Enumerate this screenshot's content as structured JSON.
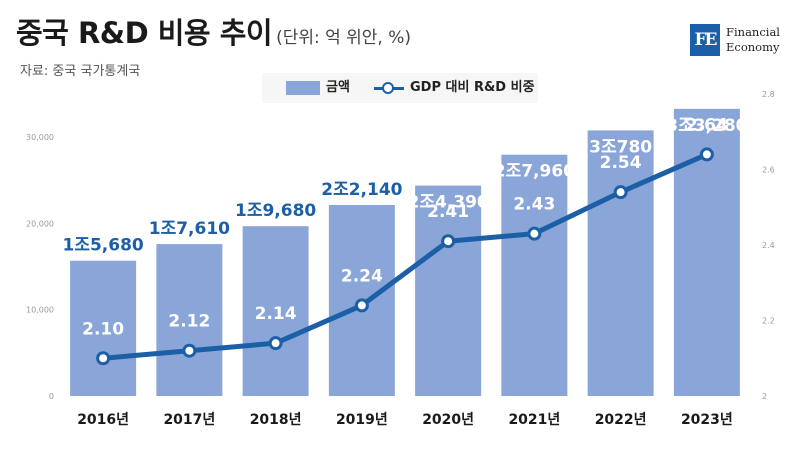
{
  "header": {
    "title": "중국 R&D 비용 추이",
    "unit": "(단위: 억 위안, %)",
    "source": "자료: 중국 국가통계국"
  },
  "logo": {
    "mark": "FE",
    "line1": "Financial",
    "line2": "Economy"
  },
  "legend": {
    "bars": "금액",
    "line": "GDP 대비 R&D 비중"
  },
  "colors": {
    "bar": "#8aa6d8",
    "line": "#1d5fa6",
    "bar_label_light": "#ffffff",
    "bar_label_dark": "#1d5fa6"
  },
  "chart_data": {
    "type": "bar",
    "categories": [
      "2016년",
      "2017년",
      "2018년",
      "2019년",
      "2020년",
      "2021년",
      "2022년",
      "2023년"
    ],
    "series": [
      {
        "name": "금액",
        "type": "bar",
        "axis": "left",
        "values": [
          15680,
          17610,
          19680,
          22140,
          24390,
          27960,
          30780,
          33280
        ],
        "labels": [
          "1조5,680",
          "1조7,610",
          "1조9,680",
          "2조2,140",
          "2조4,390",
          "2조7,960",
          "3조780",
          "3조3,280"
        ]
      },
      {
        "name": "GDP 대비 R&D 비중",
        "type": "line",
        "axis": "right",
        "values": [
          2.1,
          2.12,
          2.14,
          2.24,
          2.41,
          2.43,
          2.54,
          2.64
        ],
        "labels": [
          "2.10",
          "2.12",
          "2.14",
          "2.24",
          "2.41",
          "2.43",
          "2.54",
          "2.64"
        ]
      }
    ],
    "y_left": {
      "min": 0,
      "max": 35000,
      "ticks": [
        0,
        10000,
        20000,
        30000
      ],
      "tick_labels": [
        "0",
        "10,000",
        "20,000",
        "30,000"
      ]
    },
    "y_right": {
      "min": 2.0,
      "max": 2.8,
      "ticks": [
        2.0,
        2.2,
        2.4,
        2.6,
        2.8
      ],
      "tick_labels": [
        "2",
        "2.2",
        "2.4",
        "2.6",
        "2.8"
      ]
    },
    "grid": false,
    "legend_position": "top-center"
  }
}
